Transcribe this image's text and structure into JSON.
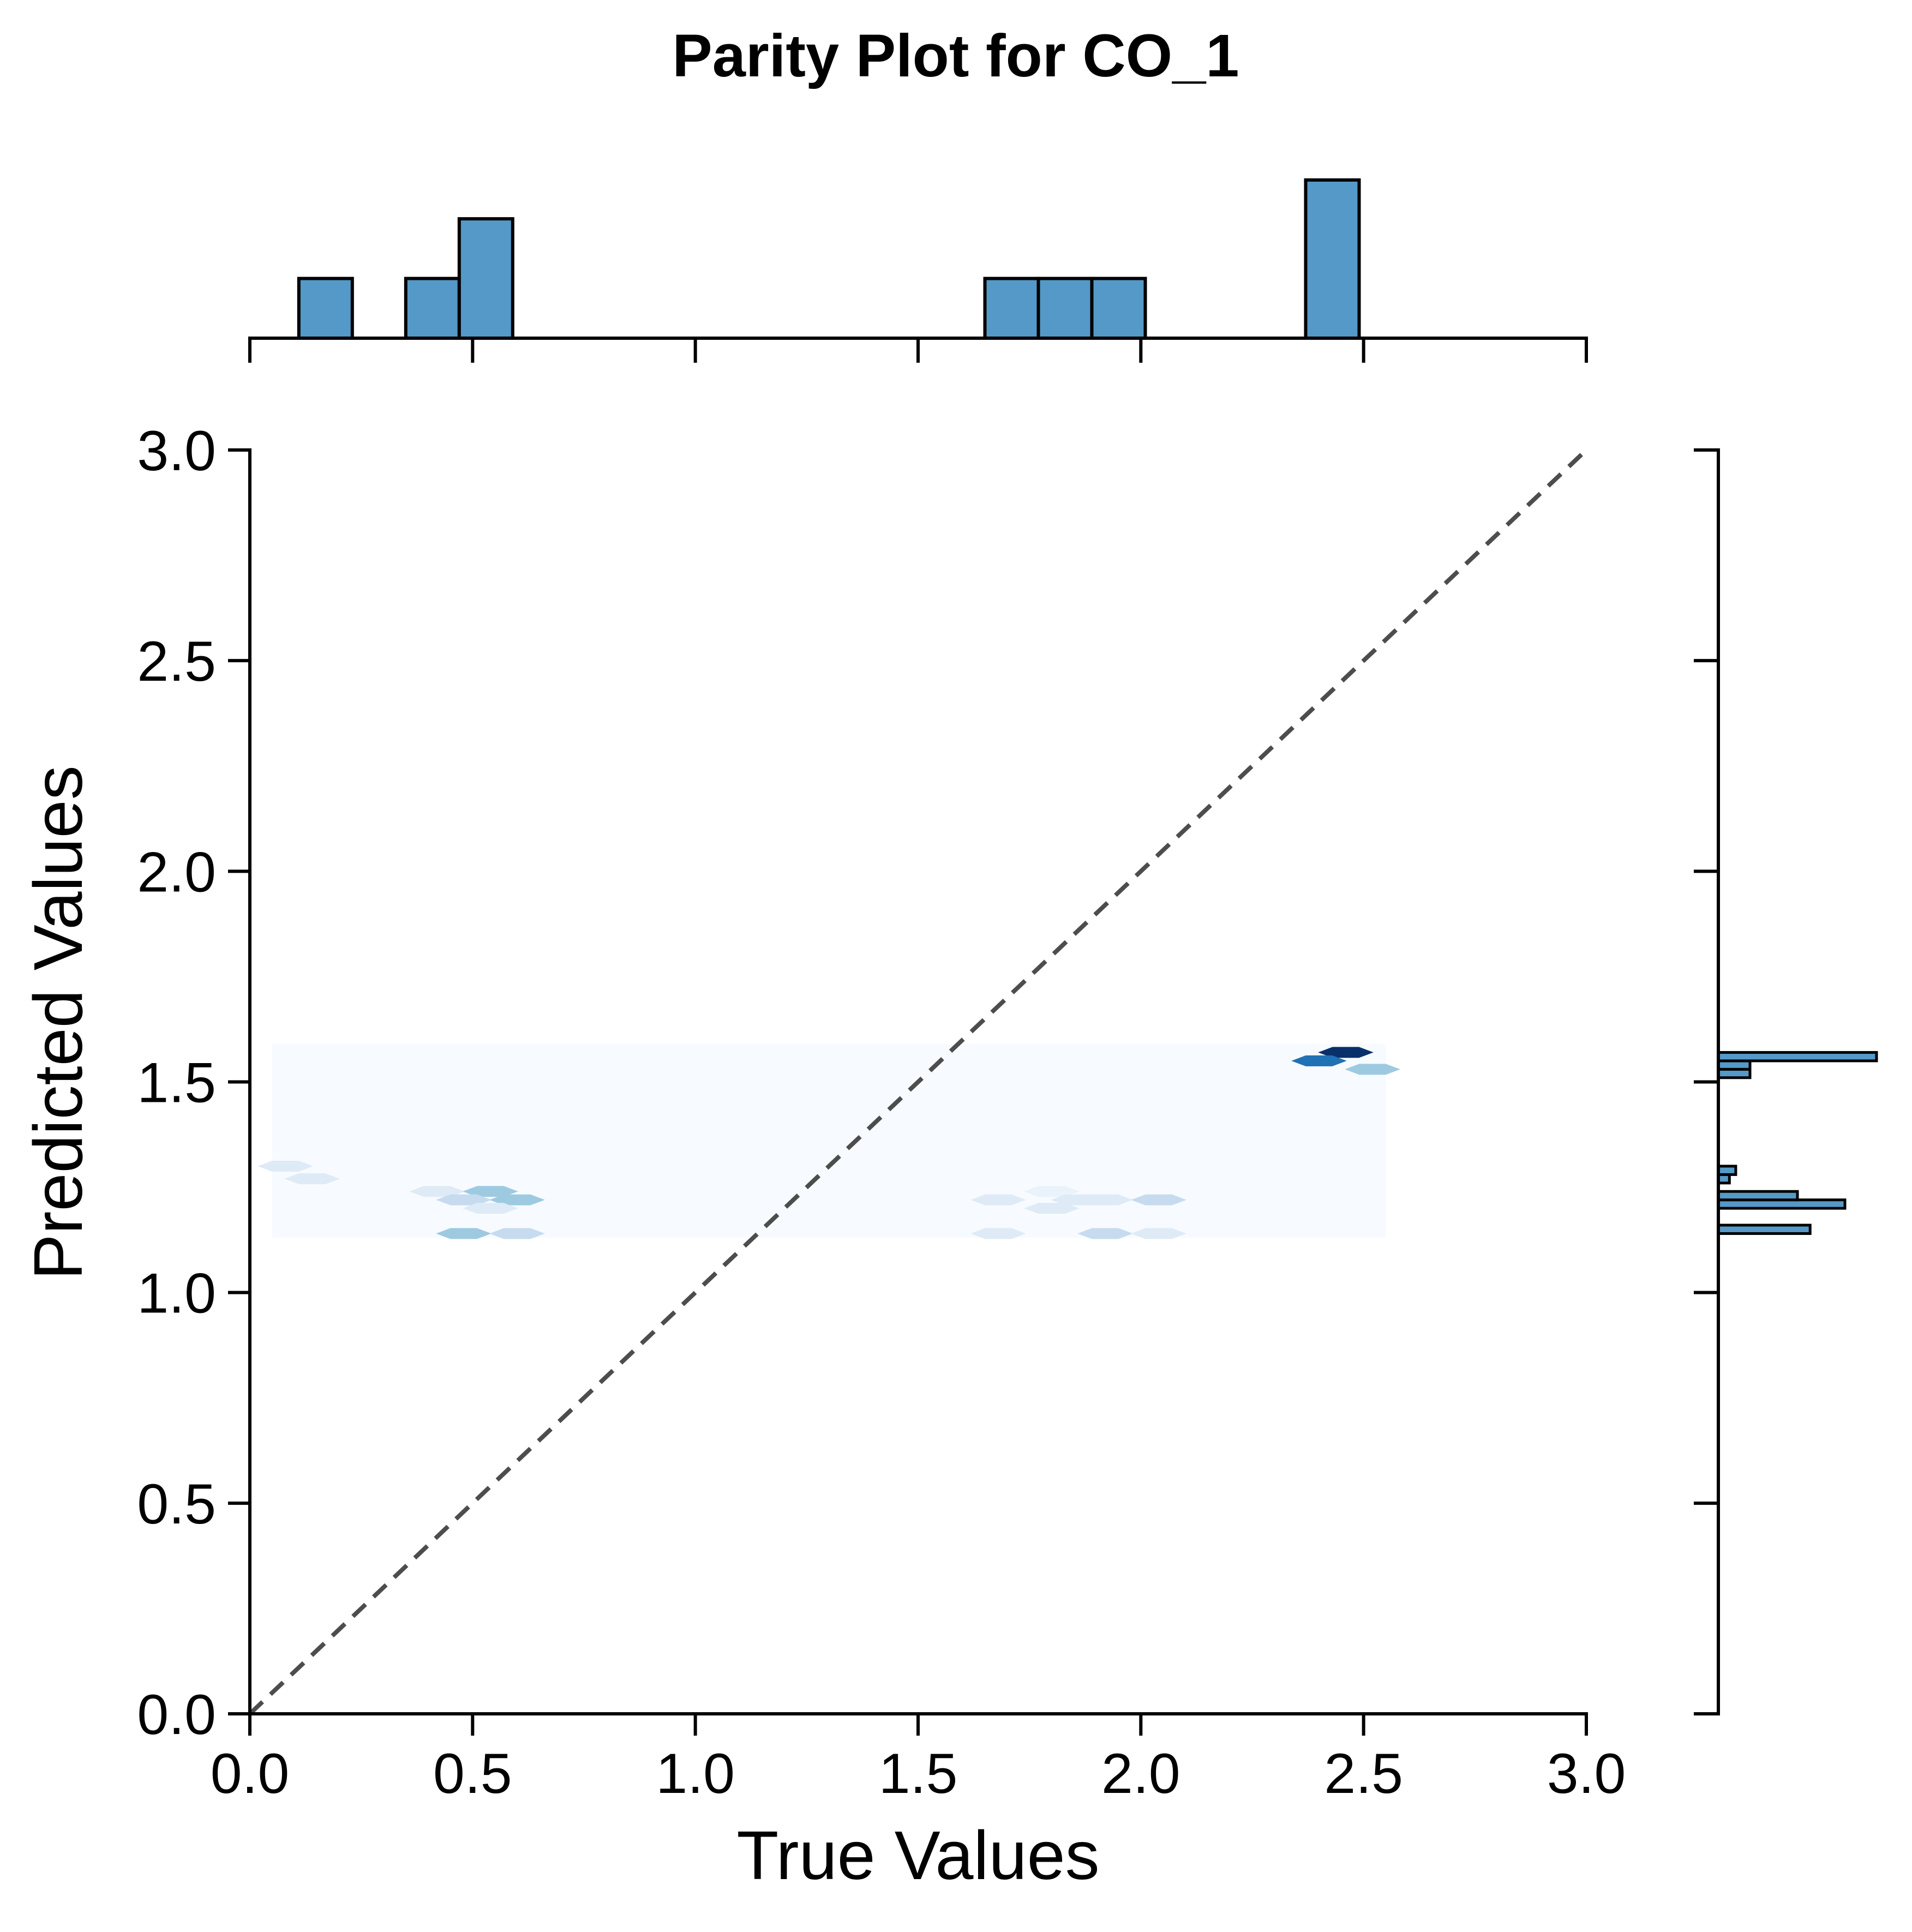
{
  "chart_data": {
    "type": "hexbin_jointplot",
    "title": "Parity Plot for CO_1",
    "xlabel": "True Values",
    "ylabel": "Predicted Values",
    "xlim": [
      0.0,
      3.0
    ],
    "ylim": [
      0.0,
      3.0
    ],
    "x_ticks": [
      "0.0",
      "0.5",
      "1.0",
      "1.5",
      "2.0",
      "2.5",
      "3.0"
    ],
    "y_ticks": [
      "0.0",
      "0.5",
      "1.0",
      "1.5",
      "2.0",
      "2.5",
      "3.0"
    ],
    "grid": false,
    "parity_line": {
      "from": [
        0,
        0
      ],
      "to": [
        3,
        3
      ],
      "style": "dashed",
      "color": "#4d4d4d"
    },
    "hexbin_extent": {
      "x": [
        0.05,
        2.55
      ],
      "y": [
        1.13,
        1.59
      ]
    },
    "background_color": "#f7fbff",
    "hexbins": [
      {
        "x": 0.08,
        "y": 1.3,
        "color": "#deebf7"
      },
      {
        "x": 0.14,
        "y": 1.27,
        "color": "#deebf7"
      },
      {
        "x": 0.42,
        "y": 1.24,
        "color": "#deebf7"
      },
      {
        "x": 0.54,
        "y": 1.24,
        "color": "#9ecae1"
      },
      {
        "x": 0.48,
        "y": 1.22,
        "color": "#c6dbef"
      },
      {
        "x": 0.6,
        "y": 1.22,
        "color": "#9ecae1"
      },
      {
        "x": 0.54,
        "y": 1.2,
        "color": "#deebf7"
      },
      {
        "x": 0.48,
        "y": 1.14,
        "color": "#9ecae1"
      },
      {
        "x": 0.6,
        "y": 1.14,
        "color": "#c6dbef"
      },
      {
        "x": 1.68,
        "y": 1.22,
        "color": "#deebf7"
      },
      {
        "x": 1.8,
        "y": 1.24,
        "color": "#eaf2fb"
      },
      {
        "x": 1.86,
        "y": 1.22,
        "color": "#deebf7"
      },
      {
        "x": 1.8,
        "y": 1.2,
        "color": "#deebf7"
      },
      {
        "x": 1.68,
        "y": 1.14,
        "color": "#deebf7"
      },
      {
        "x": 1.92,
        "y": 1.22,
        "color": "#deebf7"
      },
      {
        "x": 2.04,
        "y": 1.22,
        "color": "#c6dbef"
      },
      {
        "x": 1.92,
        "y": 1.14,
        "color": "#c6dbef"
      },
      {
        "x": 2.04,
        "y": 1.14,
        "color": "#deebf7"
      },
      {
        "x": 2.46,
        "y": 1.57,
        "color": "#08306b"
      },
      {
        "x": 2.4,
        "y": 1.55,
        "color": "#2171b5"
      },
      {
        "x": 2.52,
        "y": 1.53,
        "color": "#9ecae1"
      }
    ],
    "marginal_x_histogram": {
      "color": "#5499c7",
      "bins": [
        {
          "x0": 0.11,
          "x1": 0.23,
          "count": 1
        },
        {
          "x0": 0.35,
          "x1": 0.47,
          "count": 1
        },
        {
          "x0": 0.47,
          "x1": 0.59,
          "count": 2
        },
        {
          "x0": 1.65,
          "x1": 1.77,
          "count": 1
        },
        {
          "x0": 1.77,
          "x1": 1.89,
          "count": 1
        },
        {
          "x0": 1.89,
          "x1": 2.01,
          "count": 1
        },
        {
          "x0": 2.37,
          "x1": 2.49,
          "count": 2.65
        }
      ],
      "max_count": 2.65,
      "ticks": [
        0.0,
        0.5,
        1.0,
        1.5,
        2.0,
        2.5,
        3.0
      ]
    },
    "marginal_y_histogram": {
      "color": "#5499c7",
      "bins": [
        {
          "y0": 1.14,
          "y1": 1.16,
          "count": 2.9
        },
        {
          "y0": 1.2,
          "y1": 1.22,
          "count": 4.0
        },
        {
          "y0": 1.22,
          "y1": 1.24,
          "count": 2.5
        },
        {
          "y0": 1.26,
          "y1": 1.28,
          "count": 0.35
        },
        {
          "y0": 1.28,
          "y1": 1.3,
          "count": 0.55
        },
        {
          "y0": 1.51,
          "y1": 1.53,
          "count": 1.0
        },
        {
          "y0": 1.53,
          "y1": 1.55,
          "count": 1.0
        },
        {
          "y0": 1.55,
          "y1": 1.57,
          "count": 5.0
        }
      ],
      "max_count": 5.0,
      "ticks": [
        0.0,
        0.5,
        1.0,
        1.5,
        2.0,
        2.5,
        3.0
      ]
    }
  }
}
